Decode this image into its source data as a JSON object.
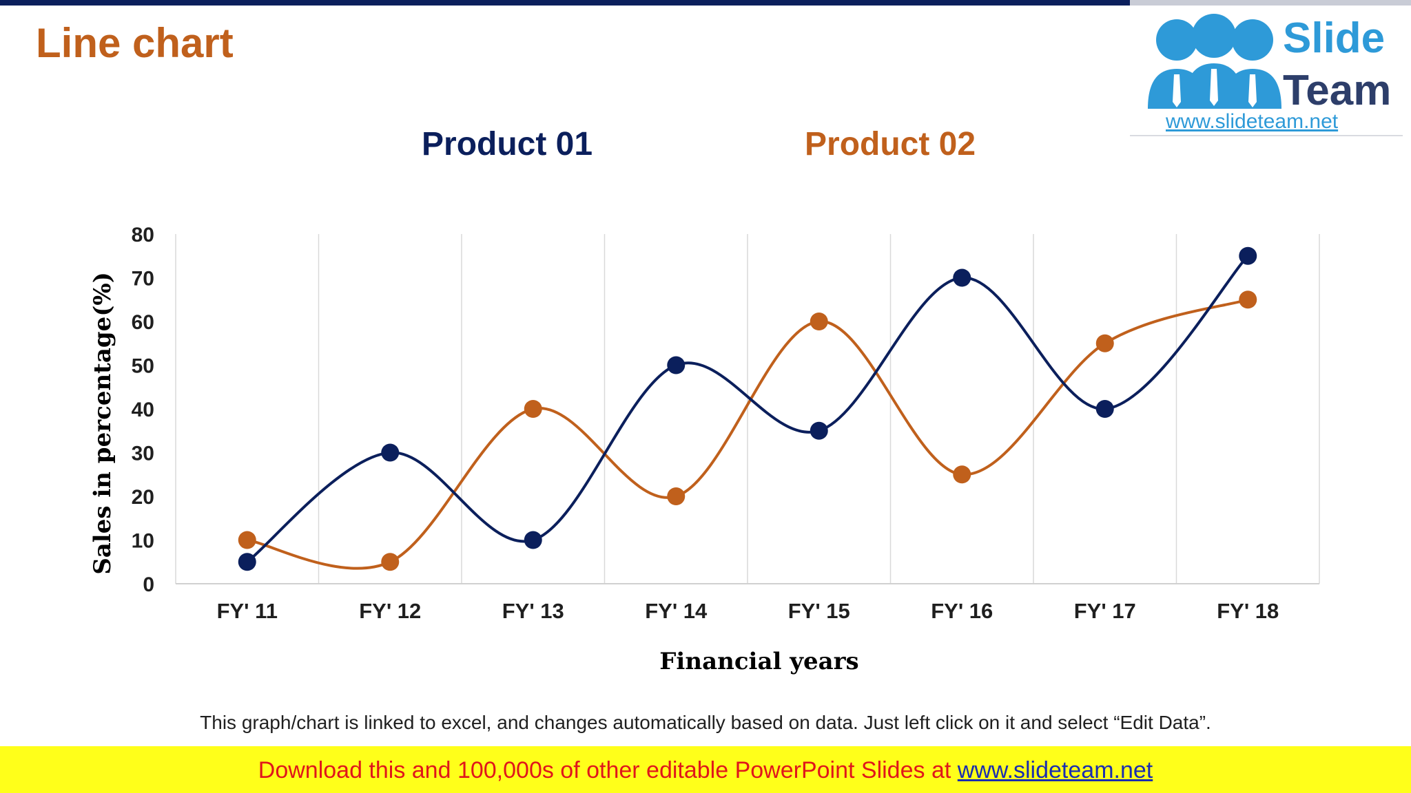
{
  "slide": {
    "title": "Line chart",
    "footnote": "This graph/chart is linked to excel, and changes automatically based on data. Just left click on it and select “Edit Data”.",
    "banner_text": "Download this and 100,000s of other editable PowerPoint Slides at ",
    "banner_url": "www.slideteam.net"
  },
  "logo": {
    "line1": "Slide",
    "line2": "Team",
    "url": "www.slideteam.net",
    "icon": "people-group-icon"
  },
  "colors": {
    "product01": "#0b1f5c",
    "product02": "#c0601c",
    "title": "#c0601c",
    "grid": "#d9d9d9"
  },
  "chart_data": {
    "type": "line",
    "title": "",
    "xlabel": "Financial years",
    "ylabel": "Sales in percentage(%)",
    "ylim": [
      0,
      80
    ],
    "yticks": [
      0,
      10,
      20,
      30,
      40,
      50,
      60,
      70,
      80
    ],
    "categories": [
      "FY' 11",
      "FY' 12",
      "FY' 13",
      "FY' 14",
      "FY' 15",
      "FY' 16",
      "FY' 17",
      "FY' 18"
    ],
    "series": [
      {
        "name": "Product 01",
        "values": [
          5,
          30,
          10,
          50,
          35,
          70,
          40,
          75
        ]
      },
      {
        "name": "Product 02",
        "values": [
          10,
          5,
          40,
          20,
          60,
          25,
          55,
          65
        ]
      }
    ],
    "legend": "top",
    "smooth": true,
    "grid": "vertical"
  }
}
